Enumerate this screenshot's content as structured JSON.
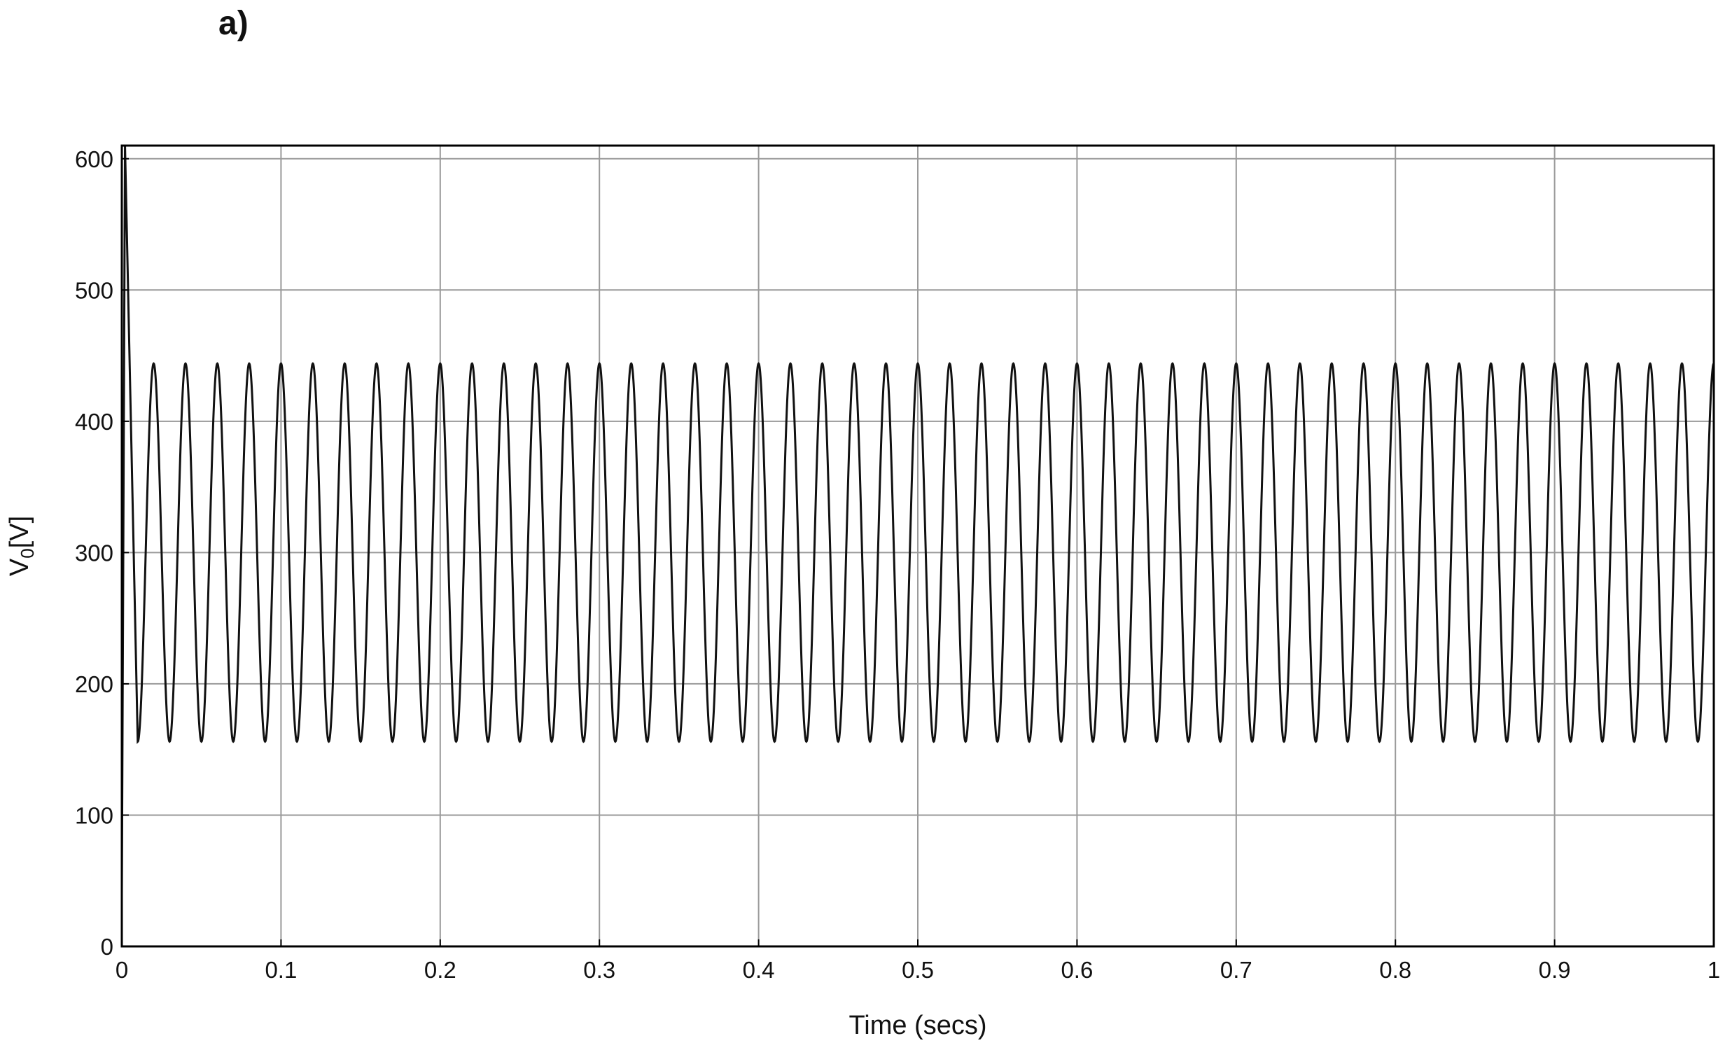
{
  "panel_label": "a)",
  "chart_data": {
    "type": "line",
    "title": "",
    "xlabel": "Time (secs)",
    "ylabel_main": "V",
    "ylabel_sub": "0",
    "ylabel_unit": "[V]",
    "xlim": [
      0,
      1
    ],
    "ylim": [
      0,
      610
    ],
    "xticks": [
      0,
      0.1,
      0.2,
      0.3,
      0.4,
      0.5,
      0.6,
      0.7,
      0.8,
      0.9,
      1
    ],
    "xtick_labels": [
      "0",
      "0.1",
      "0.2",
      "0.3",
      "0.4",
      "0.5",
      "0.6",
      "0.7",
      "0.8",
      "0.9",
      "1"
    ],
    "yticks": [
      0,
      100,
      200,
      300,
      400,
      500,
      600
    ],
    "ytick_labels": [
      "0",
      "100",
      "200",
      "300",
      "400",
      "500",
      "600"
    ],
    "grid": true,
    "series": [
      {
        "description_free": true,
        "waveform": "sinusoid",
        "frequency_hz": 50,
        "dc_offset": 300,
        "amplitude": 144,
        "initial_transient": {
          "start_value": 40,
          "peak_value": 610,
          "peak_time": 0.002,
          "settle_time": 0.01
        },
        "color": "#111111"
      }
    ],
    "colors": {
      "grid": "#9a9a9a",
      "axes": "#000000",
      "line": "#111111"
    }
  }
}
